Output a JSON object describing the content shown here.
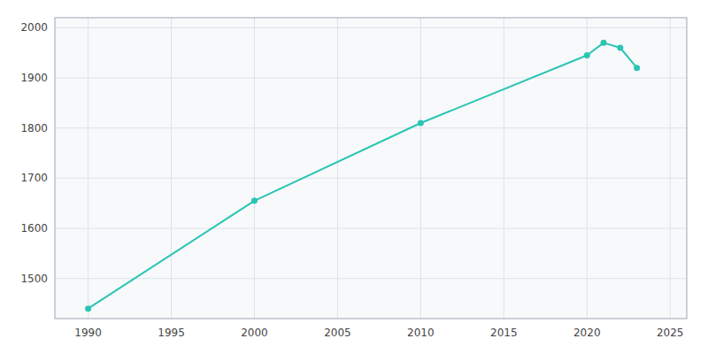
{
  "chart_data": {
    "type": "line",
    "x": [
      1990,
      2000,
      2010,
      2020,
      2021,
      2022,
      2023
    ],
    "values": [
      1440,
      1655,
      1810,
      1945,
      1970,
      1960,
      1920
    ],
    "color": "#2bc5b4",
    "marker": "circle",
    "xlim": [
      1988,
      2026
    ],
    "ylim": [
      1420,
      2020
    ],
    "xticks": [
      1990,
      1995,
      2000,
      2005,
      2010,
      2015,
      2020,
      2025
    ],
    "yticks": [
      1500,
      1600,
      1700,
      1800,
      1900,
      2000
    ],
    "grid": true
  }
}
